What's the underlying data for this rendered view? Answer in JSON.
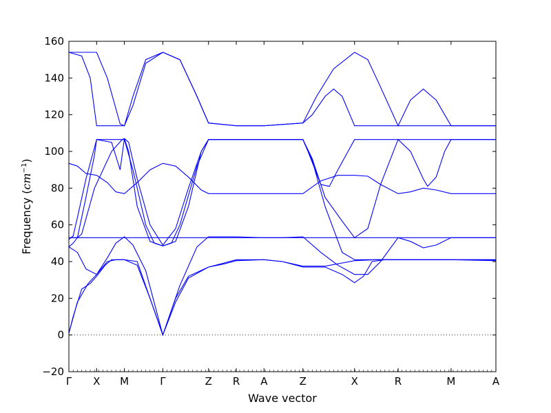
{
  "chart_data": {
    "type": "line",
    "title": "",
    "xlabel": "Wave vector",
    "ylabel_text": "Frequency (",
    "ylabel_unit": "cm",
    "ylabel_exp": "−1",
    "ylabel_close": ")",
    "ylim": [
      -20,
      160
    ],
    "yticks": [
      -20,
      0,
      20,
      40,
      60,
      80,
      100,
      120,
      140,
      160
    ],
    "xlim": [
      0,
      1
    ],
    "kpoints": [
      {
        "label": "Γ",
        "x": 0.0
      },
      {
        "label": "X",
        "x": 0.065
      },
      {
        "label": "M",
        "x": 0.13
      },
      {
        "label": "Γ",
        "x": 0.22
      },
      {
        "label": "Z",
        "x": 0.327
      },
      {
        "label": "R",
        "x": 0.392
      },
      {
        "label": "A",
        "x": 0.457
      },
      {
        "label": "Z",
        "x": 0.548
      },
      {
        "label": "X",
        "x": 0.669
      },
      {
        "label": "R",
        "x": 0.771
      },
      {
        "label": "M",
        "x": 0.895
      },
      {
        "label": "A",
        "x": 1.0
      }
    ],
    "line_color": "#0000ff",
    "grid": false,
    "legend": "none",
    "zero_line": {
      "y": 0,
      "style": "dotted"
    },
    "series": [
      {
        "points": [
          [
            0,
            1
          ],
          [
            0.02,
            18
          ],
          [
            0.045,
            28
          ],
          [
            0.065,
            33
          ],
          [
            0.09,
            40
          ],
          [
            0.11,
            41
          ],
          [
            0.13,
            41
          ],
          [
            0.16,
            38
          ],
          [
            0.19,
            20
          ],
          [
            0.22,
            0
          ],
          [
            0.25,
            20
          ],
          [
            0.28,
            32
          ],
          [
            0.327,
            37
          ],
          [
            0.36,
            39
          ],
          [
            0.392,
            41
          ],
          [
            0.457,
            41
          ],
          [
            0.5,
            40
          ],
          [
            0.548,
            37.5
          ],
          [
            0.6,
            37.5
          ],
          [
            0.669,
            40.5
          ],
          [
            0.72,
            41
          ],
          [
            0.771,
            41
          ],
          [
            0.895,
            41
          ],
          [
            1.0,
            41
          ]
        ]
      },
      {
        "points": [
          [
            0,
            1
          ],
          [
            0.01,
            10
          ],
          [
            0.03,
            25
          ],
          [
            0.05,
            28
          ],
          [
            0.065,
            32
          ],
          [
            0.085,
            38
          ],
          [
            0.1,
            41
          ],
          [
            0.13,
            41
          ],
          [
            0.16,
            40
          ],
          [
            0.19,
            20
          ],
          [
            0.22,
            0
          ],
          [
            0.25,
            18
          ],
          [
            0.28,
            31
          ],
          [
            0.327,
            37
          ],
          [
            0.36,
            38.5
          ],
          [
            0.392,
            40.5
          ],
          [
            0.457,
            41
          ],
          [
            0.5,
            40
          ],
          [
            0.548,
            37
          ],
          [
            0.6,
            37
          ],
          [
            0.64,
            33
          ],
          [
            0.669,
            28.5
          ],
          [
            0.69,
            32
          ],
          [
            0.71,
            40
          ],
          [
            0.74,
            41
          ],
          [
            0.771,
            41
          ],
          [
            0.895,
            41
          ],
          [
            1.0,
            40.5
          ]
        ]
      },
      {
        "points": [
          [
            0,
            48
          ],
          [
            0.02,
            45
          ],
          [
            0.04,
            36
          ],
          [
            0.065,
            33
          ],
          [
            0.09,
            42
          ],
          [
            0.11,
            50
          ],
          [
            0.13,
            53.5
          ],
          [
            0.15,
            49
          ],
          [
            0.18,
            35
          ],
          [
            0.22,
            0
          ],
          [
            0.26,
            27
          ],
          [
            0.3,
            48
          ],
          [
            0.327,
            53.5
          ],
          [
            0.392,
            53.5
          ],
          [
            0.457,
            53
          ],
          [
            0.5,
            53
          ],
          [
            0.548,
            53.5
          ],
          [
            0.59,
            45
          ],
          [
            0.63,
            38
          ],
          [
            0.669,
            33
          ],
          [
            0.7,
            33
          ],
          [
            0.73,
            40
          ],
          [
            0.771,
            53
          ],
          [
            0.8,
            51
          ],
          [
            0.83,
            47.5
          ],
          [
            0.86,
            49
          ],
          [
            0.895,
            53
          ],
          [
            1.0,
            53
          ]
        ]
      },
      {
        "points": [
          [
            0,
            48
          ],
          [
            0.01,
            50
          ],
          [
            0.02,
            53
          ],
          [
            0.04,
            75
          ],
          [
            0.06,
            98
          ],
          [
            0.065,
            106.5
          ],
          [
            0.13,
            106.5
          ],
          [
            0.15,
            90
          ],
          [
            0.18,
            60
          ],
          [
            0.2,
            50
          ],
          [
            0.22,
            48.5
          ],
          [
            0.24,
            50
          ],
          [
            0.26,
            60
          ],
          [
            0.3,
            92
          ],
          [
            0.327,
            106.5
          ],
          [
            0.548,
            106.5
          ],
          [
            0.57,
            95
          ],
          [
            0.6,
            70
          ],
          [
            0.64,
            45
          ],
          [
            0.669,
            41
          ],
          [
            0.771,
            41
          ],
          [
            0.895,
            41
          ],
          [
            1.0,
            41
          ]
        ]
      },
      {
        "points": [
          [
            0,
            52
          ],
          [
            0.01,
            54
          ],
          [
            0.02,
            64
          ],
          [
            0.04,
            85
          ],
          [
            0.065,
            106.5
          ],
          [
            0.1,
            105
          ],
          [
            0.12,
            90
          ],
          [
            0.13,
            107
          ],
          [
            0.14,
            100
          ],
          [
            0.16,
            70
          ],
          [
            0.19,
            51
          ],
          [
            0.22,
            48.5
          ],
          [
            0.25,
            51
          ],
          [
            0.28,
            70
          ],
          [
            0.31,
            100
          ],
          [
            0.327,
            106.5
          ],
          [
            0.548,
            106.5
          ],
          [
            0.56,
            100
          ],
          [
            0.59,
            82
          ],
          [
            0.61,
            81
          ],
          [
            0.63,
            90
          ],
          [
            0.669,
            106.5
          ],
          [
            0.72,
            106.5
          ],
          [
            0.771,
            106.5
          ],
          [
            0.895,
            106.5
          ],
          [
            1.0,
            106.5
          ]
        ]
      },
      {
        "points": [
          [
            0,
            53
          ],
          [
            0.13,
            53
          ],
          [
            0.22,
            53
          ],
          [
            0.327,
            53
          ],
          [
            0.548,
            53
          ],
          [
            0.669,
            53
          ],
          [
            0.771,
            53
          ],
          [
            0.895,
            53
          ],
          [
            1.0,
            53
          ]
        ]
      },
      {
        "points": [
          [
            0,
            53
          ],
          [
            0.02,
            53
          ],
          [
            0.03,
            55
          ],
          [
            0.06,
            80
          ],
          [
            0.1,
            100
          ],
          [
            0.125,
            106.5
          ],
          [
            0.13,
            107
          ],
          [
            0.14,
            105
          ],
          [
            0.16,
            85
          ],
          [
            0.19,
            60
          ],
          [
            0.22,
            49
          ],
          [
            0.25,
            58
          ],
          [
            0.28,
            80
          ],
          [
            0.31,
            100
          ],
          [
            0.327,
            106.5
          ],
          [
            0.548,
            106.5
          ],
          [
            0.57,
            96
          ],
          [
            0.6,
            75
          ],
          [
            0.64,
            62
          ],
          [
            0.669,
            53
          ],
          [
            0.7,
            58
          ],
          [
            0.73,
            82
          ],
          [
            0.771,
            106.5
          ],
          [
            0.8,
            100
          ],
          [
            0.83,
            85
          ],
          [
            0.84,
            81
          ],
          [
            0.86,
            86
          ],
          [
            0.88,
            100
          ],
          [
            0.895,
            106.5
          ],
          [
            1.0,
            106.5
          ]
        ]
      },
      {
        "points": [
          [
            0,
            93.5
          ],
          [
            0.02,
            92
          ],
          [
            0.04,
            88
          ],
          [
            0.065,
            87
          ],
          [
            0.09,
            83
          ],
          [
            0.11,
            78
          ],
          [
            0.13,
            77
          ],
          [
            0.16,
            83
          ],
          [
            0.19,
            90
          ],
          [
            0.22,
            93.5
          ],
          [
            0.25,
            92
          ],
          [
            0.28,
            86
          ],
          [
            0.31,
            79
          ],
          [
            0.327,
            77
          ],
          [
            0.392,
            77
          ],
          [
            0.457,
            77
          ],
          [
            0.548,
            77
          ],
          [
            0.59,
            84
          ],
          [
            0.63,
            87
          ],
          [
            0.669,
            87
          ],
          [
            0.7,
            86.5
          ],
          [
            0.73,
            82
          ],
          [
            0.771,
            77
          ],
          [
            0.8,
            78
          ],
          [
            0.83,
            80
          ],
          [
            0.86,
            79
          ],
          [
            0.895,
            77
          ],
          [
            1.0,
            77
          ]
        ]
      },
      {
        "points": [
          [
            0,
            154
          ],
          [
            0.03,
            152
          ],
          [
            0.05,
            140
          ],
          [
            0.065,
            114
          ],
          [
            0.13,
            114
          ],
          [
            0.15,
            130
          ],
          [
            0.18,
            150
          ],
          [
            0.22,
            154
          ],
          [
            0.26,
            150
          ],
          [
            0.3,
            130
          ],
          [
            0.327,
            115.5
          ],
          [
            0.392,
            114
          ],
          [
            0.457,
            114
          ],
          [
            0.548,
            115.5
          ],
          [
            0.57,
            120
          ],
          [
            0.6,
            130
          ],
          [
            0.62,
            134
          ],
          [
            0.64,
            130
          ],
          [
            0.669,
            114
          ],
          [
            0.771,
            114
          ],
          [
            0.895,
            114
          ],
          [
            1.0,
            114
          ]
        ]
      },
      {
        "points": [
          [
            0,
            154
          ],
          [
            0.03,
            154
          ],
          [
            0.065,
            154
          ],
          [
            0.09,
            140
          ],
          [
            0.12,
            115
          ],
          [
            0.13,
            114
          ],
          [
            0.15,
            125
          ],
          [
            0.18,
            148
          ],
          [
            0.22,
            154
          ],
          [
            0.26,
            150
          ],
          [
            0.3,
            130
          ],
          [
            0.327,
            115.5
          ],
          [
            0.392,
            114
          ],
          [
            0.457,
            114
          ],
          [
            0.548,
            115.5
          ],
          [
            0.58,
            130
          ],
          [
            0.62,
            145
          ],
          [
            0.669,
            154
          ],
          [
            0.7,
            150
          ],
          [
            0.73,
            135
          ],
          [
            0.771,
            114
          ],
          [
            0.8,
            128
          ],
          [
            0.83,
            134
          ],
          [
            0.86,
            128
          ],
          [
            0.895,
            114
          ],
          [
            1.0,
            114
          ]
        ]
      }
    ]
  }
}
